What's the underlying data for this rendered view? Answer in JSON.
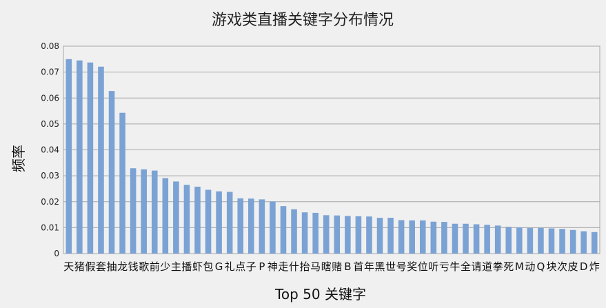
{
  "chart_data": {
    "type": "bar",
    "title": "游戏类直播关键字分布情况",
    "xlabel": "Top 50 关键字",
    "ylabel": "频率",
    "ylim": [
      0,
      0.08
    ],
    "yticks": [
      "0",
      "0.01",
      "0.02",
      "0.03",
      "0.04",
      "0.05",
      "0.06",
      "0.07",
      "0.08"
    ],
    "grid": true,
    "legend": "none",
    "categories": [
      "天",
      "猪",
      "假",
      "套",
      "抽",
      "龙",
      "钱",
      "歌",
      "前",
      "少",
      "主",
      "播",
      "虾",
      "包",
      "G",
      "礼",
      "点",
      "子",
      "P",
      "神",
      "走",
      "什",
      "抬",
      "马",
      "瞎",
      "赌",
      "B",
      "首",
      "年",
      "黑",
      "世",
      "号",
      "奖",
      "位",
      "听",
      "亏",
      "牛",
      "全",
      "请",
      "道",
      "拳",
      "死",
      "M",
      "动",
      "Q",
      "块",
      "次",
      "皮",
      "D",
      "炸"
    ],
    "values": [
      0.075,
      0.0745,
      0.0737,
      0.0721,
      0.0627,
      0.0543,
      0.0329,
      0.0325,
      0.032,
      0.0291,
      0.0278,
      0.0265,
      0.0258,
      0.0246,
      0.024,
      0.0238,
      0.0213,
      0.0212,
      0.0209,
      0.0201,
      0.0183,
      0.0171,
      0.0159,
      0.0157,
      0.0148,
      0.0147,
      0.0145,
      0.0144,
      0.0143,
      0.0138,
      0.0138,
      0.0129,
      0.0128,
      0.0128,
      0.0123,
      0.0122,
      0.0115,
      0.0115,
      0.0113,
      0.0111,
      0.0108,
      0.0103,
      0.0101,
      0.0099,
      0.0099,
      0.0097,
      0.0095,
      0.0091,
      0.0086,
      0.0083
    ],
    "colors": {
      "bar": "#7aa2d4",
      "grid": "#a6a6a6",
      "plot_bg": "#f0f0f0"
    }
  }
}
